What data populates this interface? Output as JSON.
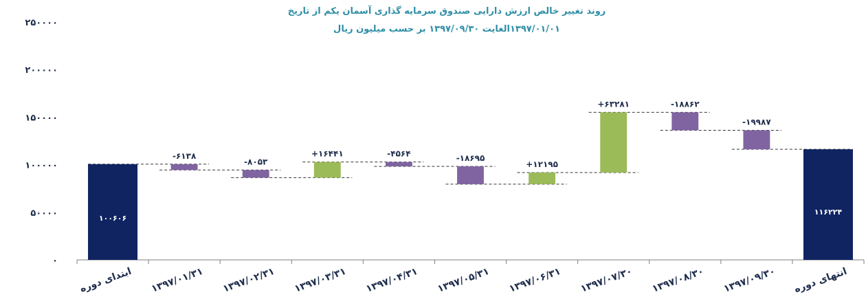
{
  "chart_data": {
    "type": "bar",
    "subtype": "waterfall",
    "title": "روند تغییر خالص ارزش  دارایی صندوق سرمایه گذاری آسمان یکم از تاریخ",
    "subtitle": "۱۳۹۷/۰۱/۰۱الغایت ۱۳۹۷/۰۹/۳۰ بر حسب میلیون ریال",
    "ylim": [
      0,
      250000
    ],
    "yticks": [
      0,
      50000,
      100000,
      150000,
      200000,
      250000
    ],
    "ytick_labels": [
      "۰",
      "۵۰۰۰۰",
      "۱۰۰۰۰۰",
      "۱۵۰۰۰۰",
      "۲۰۰۰۰۰",
      "۲۵۰۰۰۰"
    ],
    "grid": false,
    "legend": "none",
    "categories": [
      "ابتدای دوره",
      "۱۳۹۷/۰۱/۳۱",
      "۱۳۹۷/۰۲/۳۱",
      "۱۳۹۷/۰۳/۳۱",
      "۱۳۹۷/۰۴/۳۱",
      "۱۳۹۷/۰۵/۳۱",
      "۱۳۹۷/۰۶/۳۱",
      "۱۳۹۷/۰۷/۳۰",
      "۱۳۹۷/۰۸/۳۰",
      "۱۳۹۷/۰۹/۳۰",
      "انتهای دوره"
    ],
    "values": [
      100606,
      -6138,
      -8053,
      16441,
      -4564,
      -18695,
      12195,
      63281,
      -18862,
      -19987,
      116224
    ],
    "kinds": [
      "total",
      "delta",
      "delta",
      "delta",
      "delta",
      "delta",
      "delta",
      "delta",
      "delta",
      "delta",
      "total"
    ],
    "data_labels": [
      "۱۰۰۶۰۶",
      "-۶۱۳۸",
      "-۸۰۵۳",
      "+۱۶۴۴۱",
      "-۴۵۶۴",
      "-۱۸۶۹۵",
      "+۱۲۱۹۵",
      "+۶۳۲۸۱",
      "-۱۸۸۶۲",
      "-۱۹۹۸۷",
      "۱۱۶۲۲۴"
    ],
    "colors": {
      "total": "#0f2461",
      "increase": "#9bbb59",
      "decrease": "#8064a2",
      "axis": "#7f7f7f",
      "connector": "#333333",
      "title": "#2f8fa6",
      "text": "#1f2d4d"
    }
  }
}
